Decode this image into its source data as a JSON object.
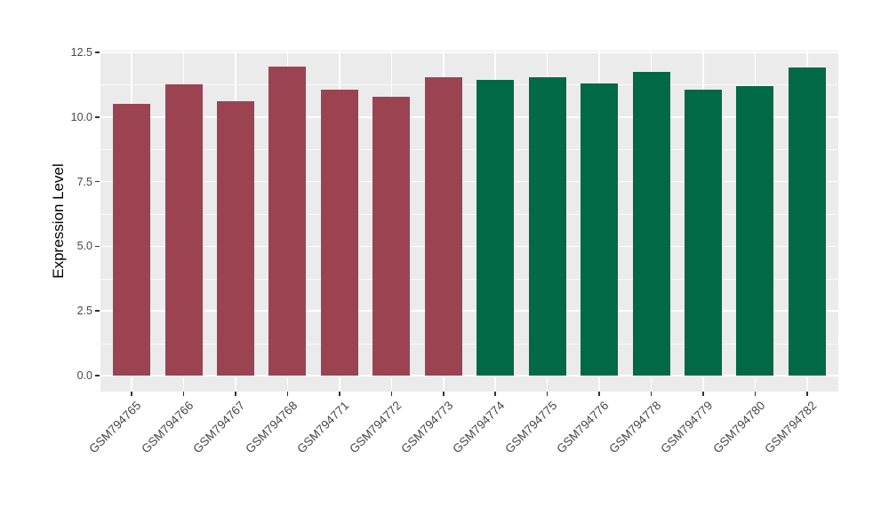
{
  "figure": {
    "background_color": "#FFFFFF",
    "panel_background_color": "#EBEBEB",
    "grid_color": "#FFFFFF",
    "tick_mark_color": "#333333",
    "tick_label_color": "#474747",
    "axis_title_color": "#000000"
  },
  "chart_data": {
    "type": "bar",
    "title": "",
    "xlabel": "",
    "ylabel": "Expression Level",
    "ylim": [
      0,
      12.5
    ],
    "ytick_labels": [
      "0.0",
      "2.5",
      "5.0",
      "7.5",
      "10.0",
      "12.5"
    ],
    "ytick_values": [
      0,
      2.5,
      5,
      7.5,
      10,
      12.5
    ],
    "yminor_values": [
      1.25,
      3.75,
      6.25,
      8.75,
      11.25
    ],
    "grid": "major-and-minor",
    "legend_position": "none",
    "categories": [
      "GSM794765",
      "GSM794766",
      "GSM794767",
      "GSM794768",
      "GSM794771",
      "GSM794772",
      "GSM794773",
      "GSM794774",
      "GSM794775",
      "GSM794776",
      "GSM794778",
      "GSM794779",
      "GSM794780",
      "GSM794782"
    ],
    "values": [
      10.5,
      11.25,
      10.6,
      11.95,
      11.05,
      10.8,
      11.55,
      11.45,
      11.55,
      11.3,
      11.75,
      11.05,
      11.2,
      11.9
    ],
    "bar_groups": [
      "group1",
      "group1",
      "group1",
      "group1",
      "group1",
      "group1",
      "group1",
      "group2",
      "group2",
      "group2",
      "group2",
      "group2",
      "group2",
      "group2"
    ],
    "group_colors": {
      "group1": "#9C4351",
      "group2": "#026946"
    }
  }
}
